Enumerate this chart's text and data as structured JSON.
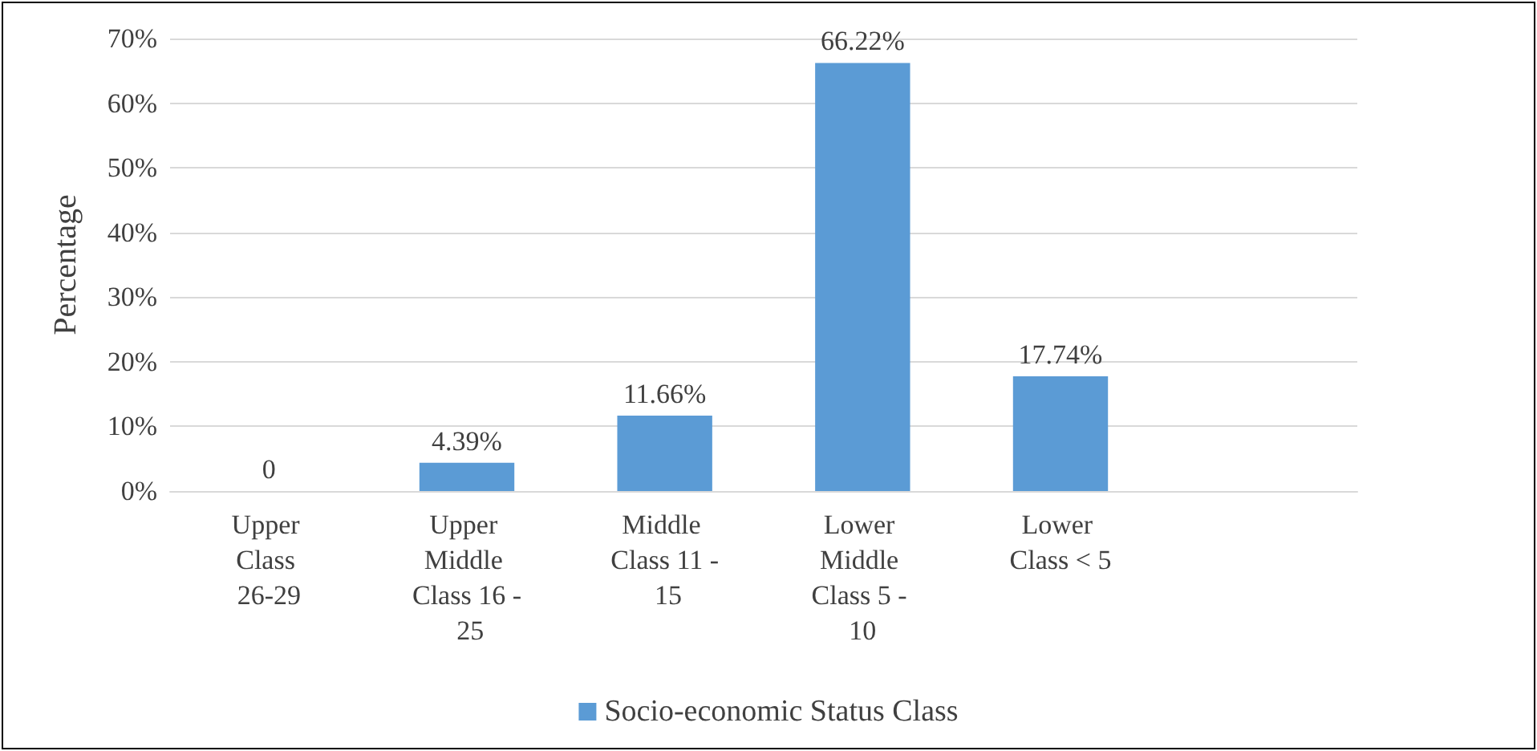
{
  "chart_data": {
    "type": "bar",
    "ylabel": "Percentage",
    "categories": [
      "Upper Class 26-29",
      "Upper Middle Class 16 - 25",
      "Middle Class 11 - 15",
      "Lower Middle Class 5 - 10",
      "Lower Class < 5",
      null
    ],
    "series": [
      {
        "name": "Socio-economic Status Class",
        "color": "#5b9bd5",
        "values": [
          0,
          4.39,
          11.66,
          66.22,
          17.74,
          null
        ],
        "value_labels": [
          "0",
          "4.39%",
          "11.66%",
          "66.22%",
          "17.74%",
          null
        ]
      }
    ],
    "ylim": [
      0,
      70
    ],
    "yticks": [
      {
        "value": 0,
        "label": "0%"
      },
      {
        "value": 10,
        "label": "10%"
      },
      {
        "value": 20,
        "label": "20%"
      },
      {
        "value": 30,
        "label": "30%"
      },
      {
        "value": 40,
        "label": "40%"
      },
      {
        "value": 50,
        "label": "50%"
      },
      {
        "value": 60,
        "label": "60%"
      },
      {
        "value": 70,
        "label": "70%"
      }
    ],
    "grid": "y",
    "legend": "bottom"
  }
}
